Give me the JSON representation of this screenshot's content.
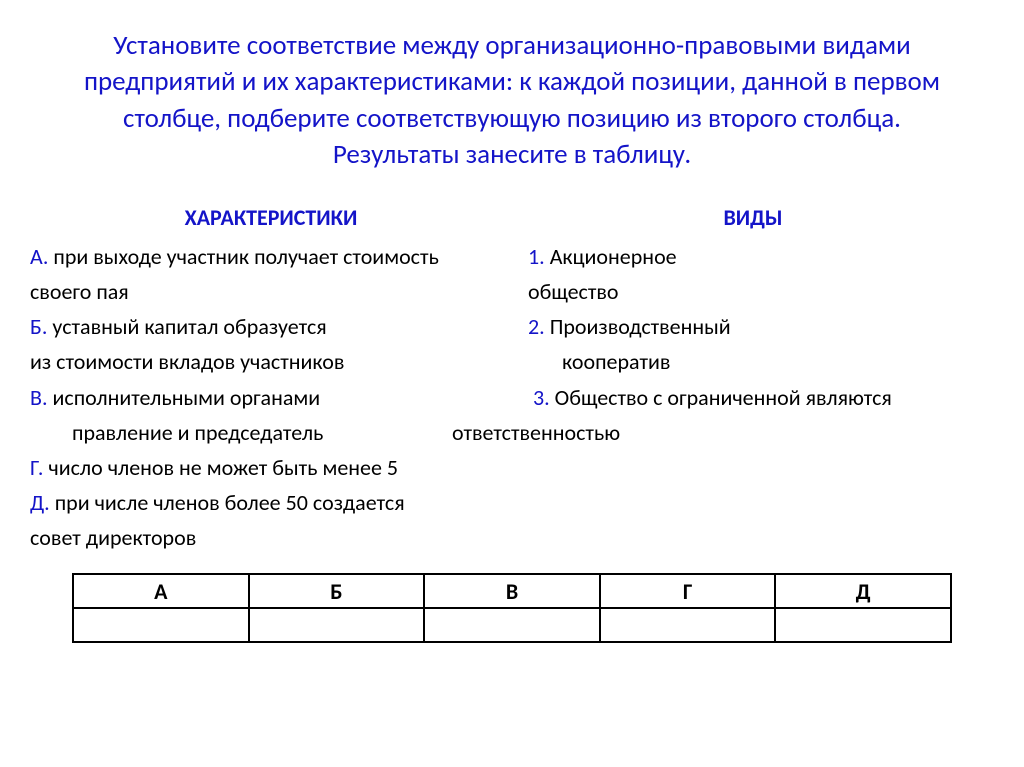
{
  "colors": {
    "title": "#1414c8",
    "body": "#000000",
    "marker": "#1414c8",
    "heading": "#1414c8",
    "table_border": "#000000",
    "background": "#ffffff"
  },
  "typography": {
    "title_fontsize": 27,
    "body_fontsize": 22,
    "heading_fontsize": 22,
    "table_fontsize": 22
  },
  "title": {
    "l1": "Установите соответствие между организационно-правовыми видами",
    "l2": "предприятий и их характеристиками: к каждой позиции, данной в первом",
    "l3": "столбце, подберите соответствующую позицию из второго столбца.",
    "l4": "Результаты занесите в таблицу."
  },
  "headings": {
    "left": "ХАРАКТЕРИСТИКИ",
    "right": "ВИДЫ"
  },
  "left": {
    "A_m": "А.",
    "A_t": " при выходе участник получает стоимость",
    "A2": "своего пая",
    "B_m": "Б.",
    "B_t": " уставный капитал образуется",
    "B2": "из стоимости вкладов участников",
    "V_m": "В.",
    "V_t": " исполнительными органами",
    "V2": "правление и председатель",
    "G_m": "Г.",
    "G_t": " число членов не может быть менее 5",
    "D_m": "Д.",
    "D_t": " при числе членов более 50 создается",
    "D2": " совет директоров"
  },
  "right": {
    "r1_m": "1.",
    "r1_t": " Акционерное",
    "r1b": "общество",
    "r2_m": "2.",
    "r2_t": " Производственный",
    "r2b": "кооператив",
    "r3_m": "3.",
    "r3_t": " Общество с ограниченной являются",
    "r3b": "ответственностью"
  },
  "table": {
    "columns": [
      "А",
      "Б",
      "В",
      "Г",
      "Д"
    ],
    "rows": [
      [
        "",
        "",
        "",
        "",
        ""
      ]
    ],
    "col_width_pct": 20,
    "border_width": 2
  }
}
